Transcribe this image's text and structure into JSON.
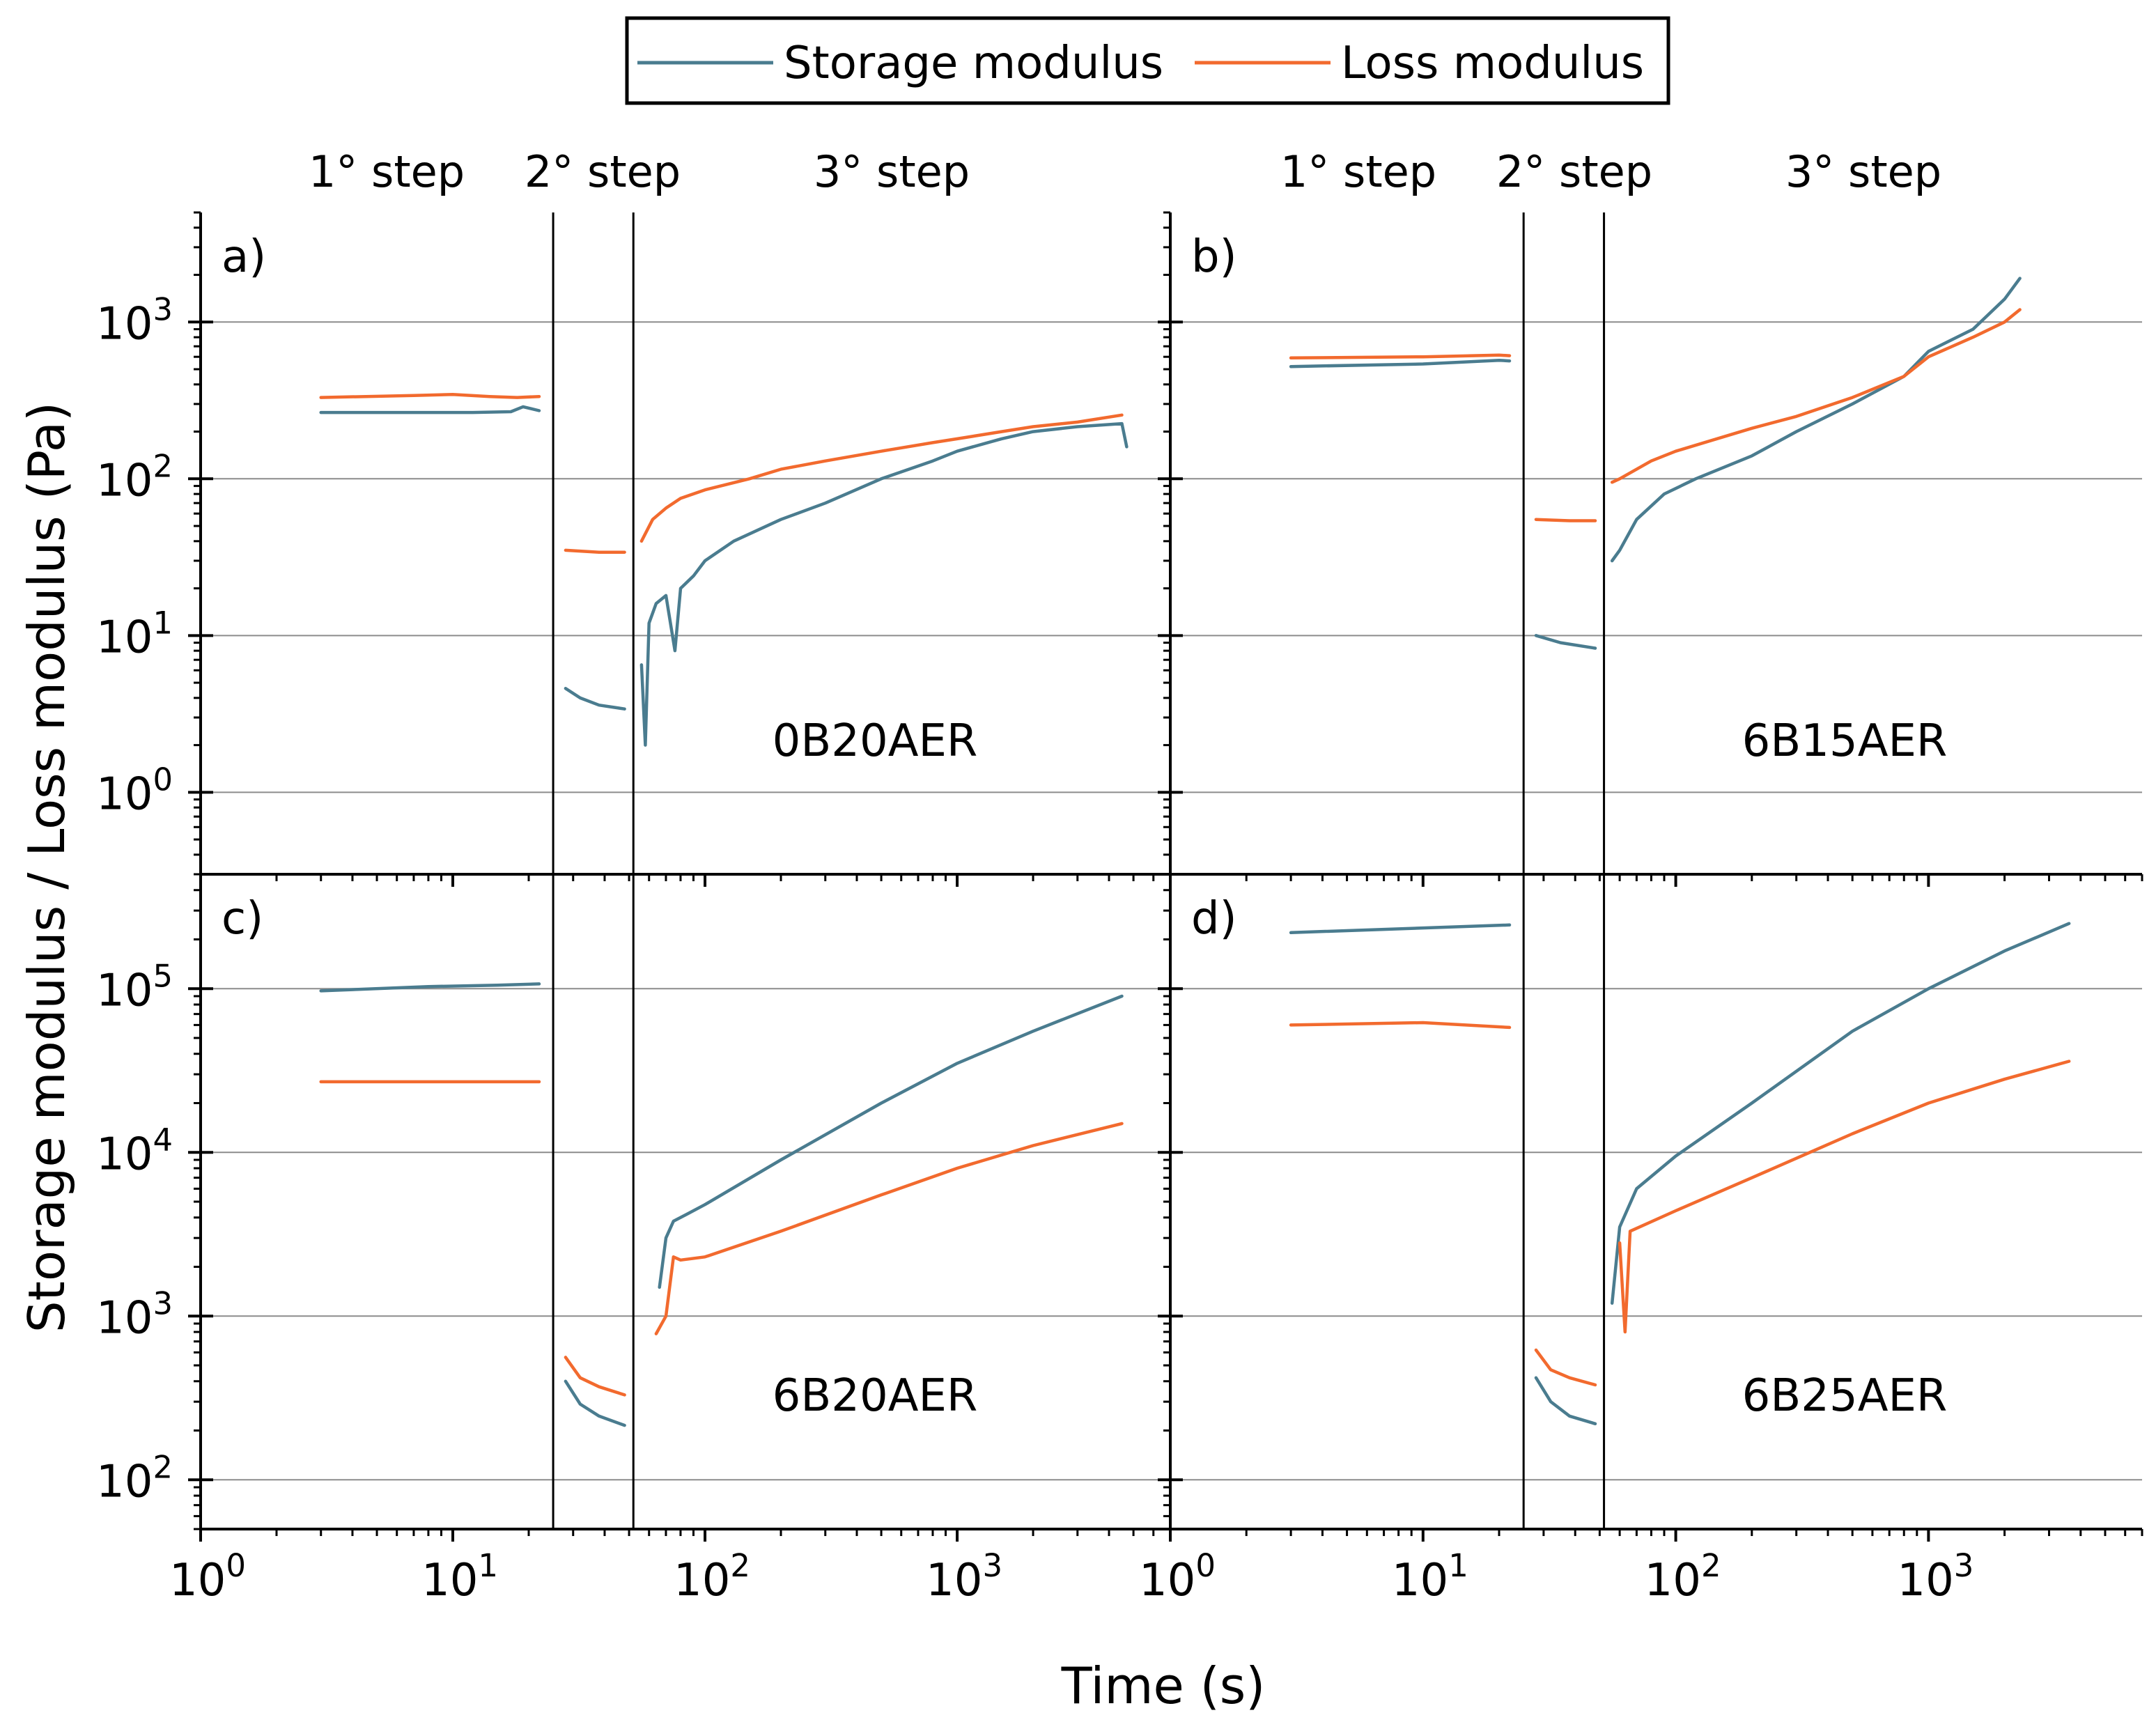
{
  "legend": {
    "storage_label": "Storage modulus",
    "loss_label": "Loss modulus"
  },
  "colors": {
    "storage": "#4a7c8f",
    "loss": "#f26a2e",
    "grid": "#8c8c8c"
  },
  "axes": {
    "ylabel": "Storage modulus / Loss modulus (Pa)",
    "xlabel": "Time (s)",
    "x_scale": "log",
    "y_scale": "log"
  },
  "step_labels": [
    "1° step",
    "2° step",
    "3° step"
  ],
  "chart_data": [
    {
      "type": "line",
      "panel_label": "a)",
      "sample": "0B20AER",
      "xlim": [
        1,
        7000
      ],
      "ylim": [
        0.3,
        5000
      ],
      "x_ticks": [
        1,
        10,
        100,
        1000
      ],
      "y_ticks": [
        1,
        10,
        100,
        1000
      ],
      "step_boundaries": [
        25,
        52
      ],
      "series": [
        {
          "name": "Storage modulus",
          "segments": [
            [
              [
                3,
                265
              ],
              [
                8,
                265
              ],
              [
                12,
                265
              ],
              [
                17,
                268
              ],
              [
                19,
                288
              ],
              [
                22,
                272
              ]
            ],
            [
              [
                28,
                4.6
              ],
              [
                32,
                4.0
              ],
              [
                38,
                3.6
              ],
              [
                48,
                3.4
              ]
            ],
            [
              [
                56,
                6.5
              ],
              [
                58,
                2.0
              ],
              [
                60,
                12
              ],
              [
                64,
                16
              ],
              [
                70,
                18
              ],
              [
                76,
                8
              ],
              [
                80,
                20
              ],
              [
                90,
                24
              ],
              [
                100,
                30
              ],
              [
                130,
                40
              ],
              [
                200,
                55
              ],
              [
                300,
                70
              ],
              [
                500,
                100
              ],
              [
                800,
                130
              ],
              [
                1000,
                150
              ],
              [
                1500,
                180
              ],
              [
                2000,
                200
              ],
              [
                3000,
                215
              ],
              [
                4500,
                225
              ],
              [
                4700,
                160
              ]
            ]
          ]
        },
        {
          "name": "Loss modulus",
          "segments": [
            [
              [
                3,
                330
              ],
              [
                7,
                340
              ],
              [
                10,
                345
              ],
              [
                14,
                335
              ],
              [
                18,
                330
              ],
              [
                22,
                335
              ]
            ],
            [
              [
                28,
                35
              ],
              [
                38,
                34
              ],
              [
                48,
                34
              ]
            ],
            [
              [
                56,
                40
              ],
              [
                62,
                55
              ],
              [
                70,
                65
              ],
              [
                80,
                75
              ],
              [
                100,
                85
              ],
              [
                150,
                100
              ],
              [
                200,
                115
              ],
              [
                300,
                130
              ],
              [
                500,
                150
              ],
              [
                800,
                170
              ],
              [
                1000,
                180
              ],
              [
                1500,
                200
              ],
              [
                2000,
                215
              ],
              [
                3000,
                230
              ],
              [
                4500,
                255
              ]
            ]
          ]
        }
      ]
    },
    {
      "type": "line",
      "panel_label": "b)",
      "sample": "6B15AER",
      "xlim": [
        1,
        7000
      ],
      "ylim": [
        0.3,
        5000
      ],
      "x_ticks": [
        1,
        10,
        100,
        1000
      ],
      "y_ticks": [
        1,
        10,
        100,
        1000
      ],
      "step_boundaries": [
        25,
        52
      ],
      "series": [
        {
          "name": "Storage modulus",
          "segments": [
            [
              [
                3,
                520
              ],
              [
                10,
                540
              ],
              [
                20,
                570
              ],
              [
                22,
                565
              ]
            ],
            [
              [
                28,
                10
              ],
              [
                35,
                9
              ],
              [
                48,
                8.3
              ]
            ],
            [
              [
                56,
                30
              ],
              [
                60,
                35
              ],
              [
                70,
                55
              ],
              [
                90,
                80
              ],
              [
                120,
                100
              ],
              [
                200,
                140
              ],
              [
                300,
                200
              ],
              [
                500,
                300
              ],
              [
                800,
                450
              ],
              [
                1000,
                650
              ],
              [
                1500,
                900
              ],
              [
                2000,
                1400
              ],
              [
                2300,
                1900
              ]
            ]
          ]
        },
        {
          "name": "Loss modulus",
          "segments": [
            [
              [
                3,
                590
              ],
              [
                10,
                600
              ],
              [
                20,
                615
              ],
              [
                22,
                610
              ]
            ],
            [
              [
                28,
                55
              ],
              [
                38,
                54
              ],
              [
                48,
                54
              ]
            ],
            [
              [
                56,
                95
              ],
              [
                60,
                100
              ],
              [
                80,
                130
              ],
              [
                100,
                150
              ],
              [
                200,
                210
              ],
              [
                300,
                250
              ],
              [
                500,
                330
              ],
              [
                800,
                450
              ],
              [
                1000,
                600
              ],
              [
                1500,
                800
              ],
              [
                2000,
                1000
              ],
              [
                2300,
                1200
              ]
            ]
          ]
        }
      ]
    },
    {
      "type": "line",
      "panel_label": "c)",
      "sample": "6B20AER",
      "xlim": [
        1,
        7000
      ],
      "ylim": [
        50,
        500000
      ],
      "x_ticks": [
        1,
        10,
        100,
        1000
      ],
      "y_ticks": [
        100,
        1000,
        10000,
        100000
      ],
      "step_boundaries": [
        25,
        52
      ],
      "series": [
        {
          "name": "Storage modulus",
          "segments": [
            [
              [
                3,
                97000
              ],
              [
                8,
                103000
              ],
              [
                15,
                105000
              ],
              [
                22,
                107000
              ]
            ],
            [
              [
                28,
                400
              ],
              [
                32,
                290
              ],
              [
                38,
                245
              ],
              [
                48,
                215
              ]
            ],
            [
              [
                66,
                1500
              ],
              [
                70,
                3000
              ],
              [
                75,
                3800
              ],
              [
                85,
                4200
              ],
              [
                100,
                4800
              ],
              [
                200,
                9000
              ],
              [
                500,
                20000
              ],
              [
                1000,
                35000
              ],
              [
                2000,
                55000
              ],
              [
                4500,
                90000
              ]
            ]
          ]
        },
        {
          "name": "Loss modulus",
          "segments": [
            [
              [
                3,
                27000
              ],
              [
                22,
                27000
              ]
            ],
            [
              [
                28,
                560
              ],
              [
                32,
                420
              ],
              [
                38,
                370
              ],
              [
                48,
                330
              ]
            ],
            [
              [
                64,
                780
              ],
              [
                70,
                1000
              ],
              [
                75,
                2300
              ],
              [
                80,
                2200
              ],
              [
                100,
                2300
              ],
              [
                200,
                3300
              ],
              [
                500,
                5500
              ],
              [
                1000,
                8000
              ],
              [
                2000,
                11000
              ],
              [
                4500,
                15000
              ]
            ]
          ]
        }
      ]
    },
    {
      "type": "line",
      "panel_label": "d)",
      "sample": "6B25AER",
      "xlim": [
        1,
        7000
      ],
      "ylim": [
        50,
        500000
      ],
      "x_ticks": [
        1,
        10,
        100,
        1000
      ],
      "y_ticks": [
        100,
        1000,
        10000,
        100000
      ],
      "step_boundaries": [
        25,
        52
      ],
      "series": [
        {
          "name": "Storage modulus",
          "segments": [
            [
              [
                3,
                220000
              ],
              [
                10,
                235000
              ],
              [
                22,
                245000
              ]
            ],
            [
              [
                28,
                420
              ],
              [
                32,
                300
              ],
              [
                38,
                245
              ],
              [
                48,
                220
              ]
            ],
            [
              [
                56,
                1200
              ],
              [
                60,
                3500
              ],
              [
                70,
                6000
              ],
              [
                100,
                9500
              ],
              [
                200,
                20000
              ],
              [
                500,
                55000
              ],
              [
                1000,
                100000
              ],
              [
                2000,
                170000
              ],
              [
                3600,
                250000
              ]
            ]
          ]
        },
        {
          "name": "Loss modulus",
          "segments": [
            [
              [
                3,
                60000
              ],
              [
                10,
                62000
              ],
              [
                22,
                58000
              ]
            ],
            [
              [
                28,
                620
              ],
              [
                32,
                470
              ],
              [
                38,
                420
              ],
              [
                48,
                380
              ]
            ],
            [
              [
                60,
                2800
              ],
              [
                63,
                800
              ],
              [
                66,
                3300
              ],
              [
                100,
                4400
              ],
              [
                200,
                7000
              ],
              [
                500,
                13000
              ],
              [
                1000,
                20000
              ],
              [
                2000,
                28000
              ],
              [
                3600,
                36000
              ]
            ]
          ]
        }
      ]
    }
  ]
}
